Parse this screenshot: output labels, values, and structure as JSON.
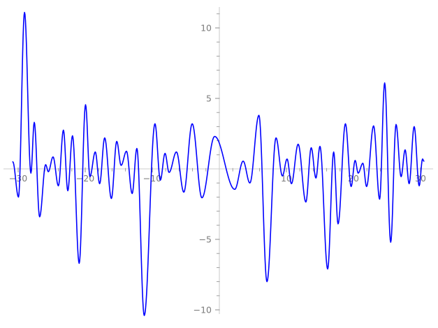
{
  "figure": {
    "background": "#ffffff",
    "axis_line_color": "#cdcdcd",
    "tick_mark_color": "#969696",
    "tick_label_color": "#7b7b7b",
    "curve_color": "#0000ff",
    "curve_width": 1.6
  },
  "chart_data": {
    "type": "line",
    "title": "",
    "xlabel": "",
    "ylabel": "",
    "xlim": [
      -31.5,
      31.9
    ],
    "ylim": [
      -11.4,
      11.6
    ],
    "grid": false,
    "legend_position": null,
    "x_major_ticks": [
      -30,
      -20,
      -10,
      10,
      20,
      30
    ],
    "x_tick_labels": [
      "−30",
      "−20",
      "−10",
      "10",
      "20",
      "30"
    ],
    "y_major_ticks": [
      -10,
      -5,
      5,
      10
    ],
    "y_tick_labels": [
      "−10",
      "−5",
      "5",
      "10"
    ],
    "x_minor_tick_step": 2,
    "y_minor_tick_step": 1,
    "x_minor_tick_range": [
      -30,
      30
    ],
    "y_minor_tick_range": [
      -10,
      11
    ],
    "series": [
      {
        "name": "blue-oscillating-curve",
        "color": "#0000ff",
        "points": [
          [
            -30.8,
            0.5
          ],
          [
            -29.95,
            -2.0
          ],
          [
            -29.05,
            11.1
          ],
          [
            -28.1,
            -0.3
          ],
          [
            -27.6,
            3.3
          ],
          [
            -26.8,
            -3.4
          ],
          [
            -25.9,
            0.3
          ],
          [
            -25.5,
            -0.2
          ],
          [
            -24.8,
            0.85
          ],
          [
            -24.0,
            -1.2
          ],
          [
            -23.25,
            2.75
          ],
          [
            -22.6,
            -1.55
          ],
          [
            -21.9,
            2.35
          ],
          [
            -20.9,
            -6.7
          ],
          [
            -19.95,
            4.55
          ],
          [
            -19.3,
            -0.55
          ],
          [
            -18.5,
            1.2
          ],
          [
            -17.85,
            -1.05
          ],
          [
            -17.1,
            2.2
          ],
          [
            -16.1,
            -2.1
          ],
          [
            -15.3,
            1.95
          ],
          [
            -14.65,
            0.25
          ],
          [
            -13.85,
            1.25
          ],
          [
            -13.0,
            -1.75
          ],
          [
            -12.3,
            1.45
          ],
          [
            -11.2,
            -10.4
          ],
          [
            -9.6,
            3.2
          ],
          [
            -8.8,
            -0.8
          ],
          [
            -8.1,
            1.1
          ],
          [
            -7.5,
            -0.25
          ],
          [
            -6.4,
            1.2
          ],
          [
            -5.3,
            -1.65
          ],
          [
            -4.05,
            3.2
          ],
          [
            -2.6,
            -2.05
          ],
          [
            -0.7,
            2.3
          ],
          [
            2.3,
            -1.45
          ],
          [
            3.55,
            0.55
          ],
          [
            4.55,
            -1.0
          ],
          [
            5.9,
            3.8
          ],
          [
            7.1,
            -8.0
          ],
          [
            8.45,
            2.2
          ],
          [
            9.4,
            -0.5
          ],
          [
            10.1,
            0.7
          ],
          [
            10.75,
            -1.05
          ],
          [
            11.75,
            1.75
          ],
          [
            12.9,
            -2.35
          ],
          [
            13.7,
            1.5
          ],
          [
            14.4,
            -0.65
          ],
          [
            15.0,
            1.6
          ],
          [
            16.15,
            -7.1
          ],
          [
            17.05,
            1.2
          ],
          [
            17.7,
            -3.9
          ],
          [
            18.8,
            3.2
          ],
          [
            19.65,
            -1.25
          ],
          [
            20.25,
            0.6
          ],
          [
            20.7,
            -0.3
          ],
          [
            21.4,
            0.4
          ],
          [
            21.95,
            -1.25
          ],
          [
            23.0,
            3.05
          ],
          [
            23.9,
            -2.15
          ],
          [
            24.65,
            6.1
          ],
          [
            25.55,
            -5.2
          ],
          [
            26.35,
            3.15
          ],
          [
            27.1,
            -0.55
          ],
          [
            27.7,
            1.35
          ],
          [
            28.3,
            -1.05
          ],
          [
            29.05,
            3.0
          ],
          [
            29.8,
            -1.2
          ],
          [
            30.3,
            0.7
          ],
          [
            30.5,
            0.55
          ]
        ]
      }
    ]
  }
}
